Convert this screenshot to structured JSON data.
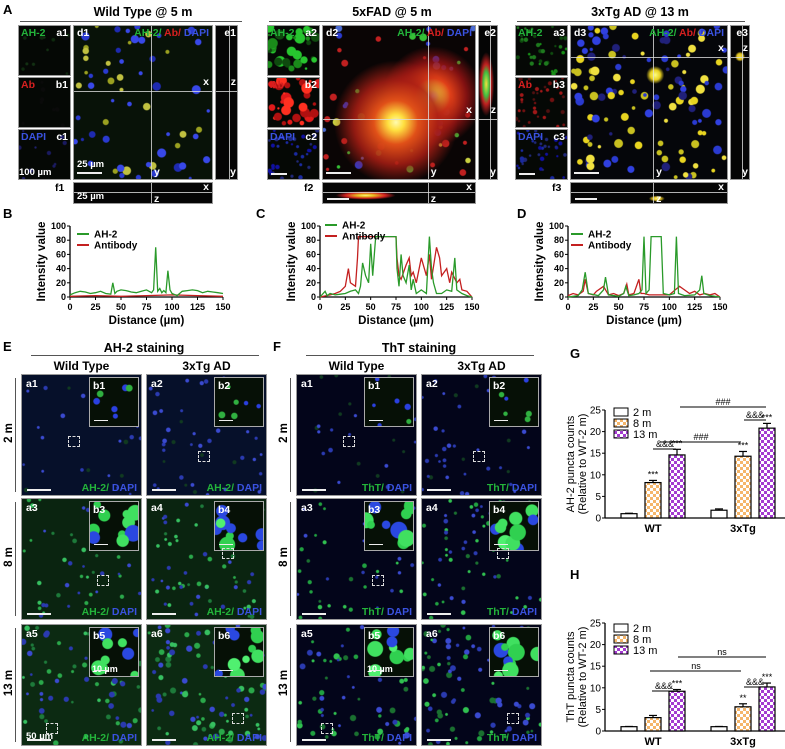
{
  "panels": {
    "A": {
      "letter": "A",
      "groups": [
        {
          "title": "Wild Type @ 5 m",
          "small": [
            {
              "ch": "AH-2",
              "id": "a1"
            },
            {
              "ch": "Ab",
              "id": "b1"
            },
            {
              "ch": "DAPI",
              "id": "c1"
            }
          ],
          "main_id": "d1",
          "side_id": "e1",
          "bottom_id": "f1",
          "scale_small": "100 µm",
          "scale_main": "25 µm",
          "scale_bottom": "25 µm"
        },
        {
          "title": "5xFAD @ 5 m",
          "small": [
            {
              "ch": "AH-2",
              "id": "a2"
            },
            {
              "ch": "Ab",
              "id": "b2"
            },
            {
              "ch": "DAPI",
              "id": "c2"
            }
          ],
          "main_id": "d2",
          "side_id": "e2",
          "bottom_id": "f2"
        },
        {
          "title": "3xTg AD @ 13 m",
          "small": [
            {
              "ch": "AH-2",
              "id": "a3"
            },
            {
              "ch": "Ab",
              "id": "b3"
            },
            {
              "ch": "DAPI",
              "id": "c3"
            }
          ],
          "main_id": "d3",
          "side_id": "e3",
          "bottom_id": "f3"
        }
      ],
      "merge_label": {
        "ah2": "AH-2/",
        "ab": " Ab/",
        "dapi": " DAPI"
      },
      "axis_x": "x",
      "axis_y": "y",
      "axis_z": "z"
    },
    "E": {
      "letter": "E",
      "title": "AH-2 staining",
      "cols": [
        "Wild Type",
        "3xTg AD"
      ],
      "rows": [
        "2 m",
        "8 m",
        "13 m"
      ],
      "stain": {
        "a": "AH-2/",
        "b": " DAPI"
      },
      "cells": [
        [
          "a1",
          "b1"
        ],
        [
          "a2",
          "b2"
        ],
        [
          "a3",
          "b3"
        ],
        [
          "a4",
          "b4"
        ],
        [
          "a5",
          "b5"
        ],
        [
          "a6",
          "b6"
        ]
      ],
      "scale_main": "50 µm",
      "scale_inset": "10 µm"
    },
    "F": {
      "letter": "F",
      "title": "ThT staining",
      "cols": [
        "Wild Type",
        "3xTg AD"
      ],
      "rows": [
        "2 m",
        "8 m",
        "13 m"
      ],
      "stain": {
        "a": "ThT/",
        "b": " DAPI"
      },
      "cells": [
        [
          "a1",
          "b1"
        ],
        [
          "a2",
          "b2"
        ],
        [
          "a3",
          "b3"
        ],
        [
          "a4",
          "b4"
        ],
        [
          "a5",
          "b5"
        ],
        [
          "a6",
          "b6"
        ]
      ],
      "scale_inset": "10 µm"
    }
  },
  "colors": {
    "ah2_green": "#2a9a2a",
    "antibody_red": "#c42020",
    "bar_2m": "#ffffff",
    "bar_8m": "#f5b66a",
    "bar_13m": "#a43bd1"
  },
  "chart_data": [
    {
      "id": "B",
      "type": "line",
      "letter": "B",
      "xlabel": "Distance (µm)",
      "ylabel": "Intensity value",
      "xlim": [
        0,
        150
      ],
      "ylim": [
        0,
        100
      ],
      "xticks": [
        "0",
        "25",
        "50",
        "75",
        "100",
        "125",
        "150"
      ],
      "yticks": [
        "0",
        "20",
        "40",
        "60",
        "80",
        "100"
      ],
      "legend": [
        "AH-2",
        "Antibody"
      ],
      "series": [
        {
          "name": "AH-2",
          "color": "#2a9a2a",
          "x": [
            0,
            5,
            10,
            15,
            20,
            25,
            30,
            35,
            40,
            42,
            44,
            46,
            50,
            55,
            60,
            65,
            70,
            75,
            80,
            82,
            84,
            86,
            88,
            90,
            92,
            94,
            96,
            98,
            100,
            105,
            110,
            115,
            120,
            125,
            130,
            135,
            140,
            145,
            150
          ],
          "y": [
            3,
            6,
            8,
            7,
            5,
            6,
            8,
            5,
            4,
            20,
            5,
            8,
            10,
            9,
            7,
            6,
            8,
            10,
            6,
            10,
            70,
            8,
            12,
            6,
            9,
            6,
            37,
            10,
            5,
            2,
            8,
            9,
            10,
            9,
            6,
            8,
            7,
            6,
            5
          ]
        },
        {
          "name": "Antibody",
          "color": "#c42020",
          "x": [
            0,
            25,
            50,
            75,
            100,
            125,
            150
          ],
          "y": [
            1,
            2,
            1,
            2,
            3,
            2,
            1
          ]
        }
      ]
    },
    {
      "id": "C",
      "type": "line",
      "letter": "C",
      "xlabel": "Distance (µm)",
      "ylabel": "Intensity value",
      "xlim": [
        0,
        150
      ],
      "ylim": [
        0,
        100
      ],
      "xticks": [
        "0",
        "25",
        "50",
        "75",
        "100",
        "125",
        "150"
      ],
      "yticks": [
        "0",
        "20",
        "40",
        "60",
        "80",
        "100"
      ],
      "legend": [
        "AH-2",
        "Antibody"
      ],
      "series": [
        {
          "name": "AH-2",
          "color": "#2a9a2a",
          "x": [
            0,
            5,
            7,
            10,
            15,
            20,
            25,
            30,
            35,
            38,
            40,
            42,
            45,
            48,
            50,
            52,
            55,
            56,
            60,
            65,
            70,
            75,
            76,
            78,
            80,
            82,
            85,
            88,
            90,
            92,
            95,
            100,
            105,
            108,
            110,
            112,
            115,
            120,
            125,
            130,
            133,
            135,
            140,
            145,
            150
          ],
          "y": [
            0,
            8,
            2,
            5,
            3,
            4,
            5,
            8,
            10,
            5,
            15,
            48,
            30,
            20,
            75,
            30,
            85,
            85,
            85,
            85,
            85,
            85,
            40,
            15,
            60,
            30,
            20,
            45,
            10,
            25,
            5,
            10,
            5,
            85,
            40,
            20,
            5,
            5,
            10,
            8,
            55,
            10,
            5,
            2,
            0
          ]
        },
        {
          "name": "Antibody",
          "color": "#c42020",
          "x": [
            0,
            10,
            15,
            20,
            25,
            28,
            30,
            35,
            37,
            38,
            45,
            50,
            55,
            60,
            70,
            75,
            76,
            78,
            80,
            85,
            88,
            90,
            92,
            95,
            100,
            105,
            108,
            110,
            115,
            118,
            120,
            125,
            128,
            130,
            135,
            138,
            140,
            145,
            150
          ],
          "y": [
            0,
            3,
            5,
            8,
            15,
            40,
            20,
            15,
            55,
            85,
            85,
            85,
            85,
            85,
            85,
            85,
            55,
            30,
            25,
            45,
            55,
            30,
            35,
            20,
            55,
            30,
            60,
            25,
            70,
            55,
            30,
            40,
            20,
            35,
            20,
            25,
            10,
            8,
            0
          ]
        }
      ]
    },
    {
      "id": "D",
      "type": "line",
      "letter": "D",
      "xlabel": "Distance (µm)",
      "ylabel": "Intensity value",
      "xlim": [
        0,
        150
      ],
      "ylim": [
        0,
        100
      ],
      "xticks": [
        "0",
        "25",
        "50",
        "75",
        "100",
        "125",
        "150"
      ],
      "yticks": [
        "0",
        "20",
        "40",
        "60",
        "80",
        "100"
      ],
      "legend": [
        "AH-2",
        "Antibody"
      ],
      "series": [
        {
          "name": "AH-2",
          "color": "#2a9a2a",
          "x": [
            0,
            10,
            14,
            17,
            20,
            30,
            35,
            37,
            40,
            50,
            55,
            57,
            60,
            65,
            70,
            73,
            75,
            77,
            80,
            82,
            84,
            90,
            92,
            94,
            100,
            105,
            107,
            109,
            115,
            125,
            130,
            132,
            134,
            140,
            150
          ],
          "y": [
            0,
            2,
            10,
            35,
            5,
            2,
            10,
            28,
            3,
            1,
            5,
            15,
            2,
            3,
            5,
            10,
            85,
            5,
            10,
            85,
            85,
            85,
            85,
            5,
            3,
            5,
            85,
            5,
            2,
            3,
            10,
            30,
            5,
            2,
            0
          ]
        },
        {
          "name": "Antibody",
          "color": "#c42020",
          "x": [
            0,
            5,
            10,
            15,
            17,
            20,
            25,
            28,
            35,
            40,
            45,
            50,
            55,
            58,
            60,
            65,
            70,
            72,
            75,
            80,
            100,
            110,
            115,
            120,
            125,
            130,
            135,
            140,
            145,
            150
          ],
          "y": [
            2,
            5,
            3,
            8,
            25,
            5,
            3,
            8,
            15,
            3,
            5,
            2,
            5,
            18,
            3,
            5,
            25,
            5,
            5,
            3,
            3,
            15,
            10,
            5,
            8,
            3,
            5,
            3,
            5,
            0
          ]
        }
      ]
    },
    {
      "id": "G",
      "type": "bar",
      "letter": "G",
      "ylabel": "AH-2 puncta counts\n(Relative to WT-2 m)",
      "ylabel_line1": "AH-2 puncta counts",
      "ylabel_line2": "(Relative to WT-2 m)",
      "categories": [
        "WT",
        "3xTg"
      ],
      "ylim": [
        0,
        25
      ],
      "yticks": [
        "0",
        "5",
        "10",
        "15",
        "20",
        "25"
      ],
      "legend": [
        "2 m",
        "8 m",
        "13 m"
      ],
      "series": [
        {
          "name": "2 m",
          "values": [
            1.0,
            1.8
          ],
          "errors": [
            0.1,
            0.3
          ],
          "sig": [
            "",
            ""
          ]
        },
        {
          "name": "8 m",
          "values": [
            8.2,
            14.3
          ],
          "errors": [
            0.5,
            1.1
          ],
          "sig": [
            "***",
            "***"
          ]
        },
        {
          "name": "13 m",
          "values": [
            14.6,
            20.8
          ],
          "errors": [
            1.3,
            1.1
          ],
          "sig": [
            "***",
            "***"
          ]
        }
      ],
      "comparisons": [
        {
          "label": "###",
          "from": "WT-8m",
          "to": "3xTg-8m"
        },
        {
          "label": "###",
          "from": "WT-13m",
          "to": "3xTg-13m"
        },
        {
          "label": "&&&",
          "group": "WT"
        },
        {
          "label": "&&&",
          "group": "3xTg"
        }
      ]
    },
    {
      "id": "H",
      "type": "bar",
      "letter": "H",
      "ylabel": "ThT puncta counts\n(Relative to WT-2 m)",
      "ylabel_line1": "ThT puncta counts",
      "ylabel_line2": "(Relative to WT-2 m)",
      "categories": [
        "WT",
        "3xTg"
      ],
      "ylim": [
        0,
        25
      ],
      "yticks": [
        "0",
        "5",
        "10",
        "15",
        "20",
        "25"
      ],
      "legend": [
        "2 m",
        "8 m",
        "13 m"
      ],
      "series": [
        {
          "name": "2 m",
          "values": [
            1.0,
            1.0
          ],
          "errors": [
            0.05,
            0.05
          ],
          "sig": [
            "",
            ""
          ]
        },
        {
          "name": "8 m",
          "values": [
            3.1,
            5.6
          ],
          "errors": [
            0.5,
            0.7
          ],
          "sig": [
            "",
            "**"
          ]
        },
        {
          "name": "13 m",
          "values": [
            9.2,
            10.2
          ],
          "errors": [
            0.4,
            0.9
          ],
          "sig": [
            "***",
            "***"
          ]
        }
      ],
      "comparisons": [
        {
          "label": "ns",
          "from": "WT-8m",
          "to": "3xTg-8m"
        },
        {
          "label": "ns",
          "from": "WT-13m",
          "to": "3xTg-13m"
        },
        {
          "label": "&&&",
          "group": "WT"
        },
        {
          "label": "&&&",
          "group": "3xTg"
        }
      ]
    }
  ]
}
